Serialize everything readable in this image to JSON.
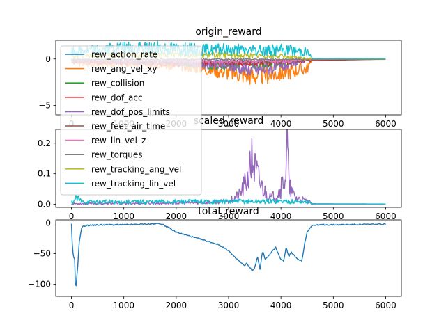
{
  "chart_data": [
    {
      "type": "line",
      "title": "origin_reward",
      "xlabel": "",
      "ylabel": "",
      "xlim": [
        -300,
        6300
      ],
      "ylim": [
        -6,
        2
      ],
      "xticks": [
        0,
        1000,
        2000,
        3000,
        4000,
        5000,
        6000
      ],
      "xtick_labels": [
        "0",
        "1000",
        "2000",
        "3000",
        "4000",
        "5000",
        "6000"
      ],
      "yticks": [
        -5,
        0
      ],
      "ytick_labels": [
        "−5",
        "0"
      ],
      "series": [
        {
          "name": "rew_action_rate",
          "color": "#1f77b4",
          "values_x": [
            0,
            100,
            1000,
            2000,
            3000,
            4000,
            4500,
            5000,
            6000
          ],
          "values_y": [
            -0.1,
            -0.2,
            -0.2,
            -0.25,
            -0.3,
            -0.3,
            -0.05,
            -0.02,
            -0.02
          ]
        },
        {
          "name": "rew_ang_vel_xy",
          "color": "#ff7f0e",
          "values_x": [
            0,
            200,
            1700,
            2500,
            3000,
            3500,
            4000,
            4500,
            4600,
            6000
          ],
          "values_y": [
            -0.3,
            -0.5,
            -0.6,
            -1.0,
            -1.4,
            -1.8,
            -1.5,
            -1.0,
            -0.05,
            -0.05
          ]
        },
        {
          "name": "rew_collision",
          "color": "#2ca02c",
          "values_x": [
            0,
            1000,
            2000,
            3000,
            4000,
            4500,
            6000
          ],
          "values_y": [
            -0.2,
            -0.3,
            -0.4,
            -0.8,
            -0.5,
            -0.1,
            -0.02
          ]
        },
        {
          "name": "rew_dof_acc",
          "color": "#d62728",
          "values_x": [
            0,
            1000,
            2000,
            3000,
            4000,
            4500,
            6000
          ],
          "values_y": [
            -0.3,
            -0.4,
            -0.5,
            -0.5,
            -0.4,
            -0.2,
            -0.02
          ]
        },
        {
          "name": "rew_dof_pos_limits",
          "color": "#9467bd",
          "values_x": [
            0,
            1000,
            2000,
            3000,
            3500,
            4000,
            4500,
            6000
          ],
          "values_y": [
            -0.2,
            -0.3,
            -0.4,
            -0.8,
            -1.2,
            -0.9,
            -0.1,
            -0.02
          ]
        },
        {
          "name": "rew_feet_air_time",
          "color": "#8c564b",
          "values_x": [
            0,
            1000,
            2000,
            3000,
            4000,
            4500,
            6000
          ],
          "values_y": [
            -0.1,
            -0.2,
            -0.3,
            -0.3,
            -0.3,
            -0.1,
            -0.02
          ]
        },
        {
          "name": "rew_lin_vel_z",
          "color": "#e377c2",
          "values_x": [
            0,
            1000,
            2000,
            3000,
            4000,
            4500,
            6000
          ],
          "values_y": [
            -0.1,
            -0.15,
            -0.2,
            -0.3,
            -0.3,
            -0.05,
            -0.02
          ]
        },
        {
          "name": "rew_torques",
          "color": "#7f7f7f",
          "values_x": [
            0,
            6000
          ],
          "values_y": [
            -0.05,
            -0.02
          ]
        },
        {
          "name": "rew_tracking_ang_vel",
          "color": "#bcbd22",
          "values_x": [
            0,
            1000,
            2000,
            3000,
            4000,
            4500,
            6000
          ],
          "values_y": [
            0.3,
            0.4,
            0.5,
            0.4,
            0.3,
            0.05,
            0.02
          ]
        },
        {
          "name": "rew_tracking_lin_vel",
          "color": "#17becf",
          "values_x": [
            0,
            500,
            1000,
            1700,
            2500,
            3000,
            3500,
            4000,
            4500,
            4600,
            6000
          ],
          "values_y": [
            0.8,
            1.0,
            1.1,
            1.2,
            1.0,
            1.0,
            0.9,
            1.0,
            0.8,
            0.05,
            0.05
          ]
        }
      ]
    },
    {
      "type": "line",
      "title": "scaled_reward",
      "xlabel": "",
      "ylabel": "",
      "xlim": [
        -300,
        6300
      ],
      "ylim": [
        -0.01,
        0.245
      ],
      "xticks": [
        0,
        1000,
        2000,
        3000,
        4000,
        5000,
        6000
      ],
      "xtick_labels": [
        "0",
        "1000",
        "2000",
        "3000",
        "4000",
        "5000",
        "6000"
      ],
      "yticks": [
        0.0,
        0.1,
        0.2
      ],
      "ytick_labels": [
        "0.0",
        "0.1",
        "0.2"
      ],
      "series": [
        {
          "name": "rew_dof_pos_limits",
          "color": "#9467bd",
          "values_x": [
            0,
            1000,
            2500,
            3000,
            3200,
            3300,
            3400,
            3450,
            3500,
            3600,
            3700,
            3800,
            3900,
            4000,
            4050,
            4100,
            4120,
            4150,
            4200,
            4300,
            4400,
            4500,
            4600,
            6000
          ],
          "values_y": [
            0.002,
            0.003,
            0.005,
            0.01,
            0.03,
            0.06,
            0.1,
            0.15,
            0.12,
            0.07,
            0.04,
            0.02,
            0.03,
            0.05,
            0.08,
            0.1,
            0.232,
            0.06,
            0.04,
            0.02,
            0.015,
            0.01,
            0.002,
            0.001
          ]
        },
        {
          "name": "rew_tracking_lin_vel",
          "color": "#17becf",
          "values_x": [
            0,
            100,
            200,
            1000,
            2000,
            3000,
            4000,
            4500,
            4600,
            6000
          ],
          "values_y": [
            0.005,
            0.02,
            0.008,
            0.008,
            0.009,
            0.009,
            0.01,
            0.008,
            0.001,
            0.001
          ]
        }
      ]
    },
    {
      "type": "line",
      "title": "total_reward",
      "xlabel": "",
      "ylabel": "",
      "xlim": [
        -300,
        6300
      ],
      "ylim": [
        -120,
        5
      ],
      "xticks": [
        0,
        1000,
        2000,
        3000,
        4000,
        5000,
        6000
      ],
      "xtick_labels": [
        "0",
        "1000",
        "2000",
        "3000",
        "4000",
        "5000",
        "6000"
      ],
      "yticks": [
        -100,
        -50,
        0
      ],
      "ytick_labels": [
        "−100",
        "−50",
        "0"
      ],
      "series": [
        {
          "name": "total_reward",
          "color": "#1f77b4",
          "values_x": [
            0,
            20,
            40,
            60,
            80,
            100,
            120,
            150,
            200,
            300,
            600,
            1000,
            1400,
            1700,
            1800,
            1900,
            2000,
            2200,
            2400,
            2600,
            2800,
            2900,
            3000,
            3100,
            3200,
            3300,
            3350,
            3400,
            3450,
            3500,
            3550,
            3600,
            3650,
            3700,
            3800,
            3900,
            4000,
            4050,
            4100,
            4150,
            4200,
            4300,
            4400,
            4450,
            4500,
            4550,
            4600,
            4800,
            5000,
            6000
          ],
          "values_y": [
            -2,
            -45,
            -55,
            -60,
            -115,
            -90,
            -70,
            -30,
            -6,
            -4,
            -3,
            -3,
            -2,
            -1,
            -5,
            -10,
            -15,
            -20,
            -25,
            -30,
            -35,
            -40,
            -45,
            -55,
            -62,
            -70,
            -66,
            -72,
            -78,
            -74,
            -55,
            -75,
            -45,
            -60,
            -50,
            -40,
            -60,
            -62,
            -40,
            -55,
            -48,
            -58,
            -62,
            -35,
            -15,
            -8,
            -4,
            -3,
            -3,
            -2
          ]
        }
      ]
    }
  ],
  "legend": {
    "placement": "upper-left",
    "entries": [
      {
        "label": "rew_action_rate",
        "color": "#1f77b4"
      },
      {
        "label": "rew_ang_vel_xy",
        "color": "#ff7f0e"
      },
      {
        "label": "rew_collision",
        "color": "#2ca02c"
      },
      {
        "label": "rew_dof_acc",
        "color": "#d62728"
      },
      {
        "label": "rew_dof_pos_limits",
        "color": "#9467bd"
      },
      {
        "label": "rew_feet_air_time",
        "color": "#8c564b"
      },
      {
        "label": "rew_lin_vel_z",
        "color": "#e377c2"
      },
      {
        "label": "rew_torques",
        "color": "#7f7f7f"
      },
      {
        "label": "rew_tracking_ang_vel",
        "color": "#bcbd22"
      },
      {
        "label": "rew_tracking_lin_vel",
        "color": "#17becf"
      }
    ]
  }
}
